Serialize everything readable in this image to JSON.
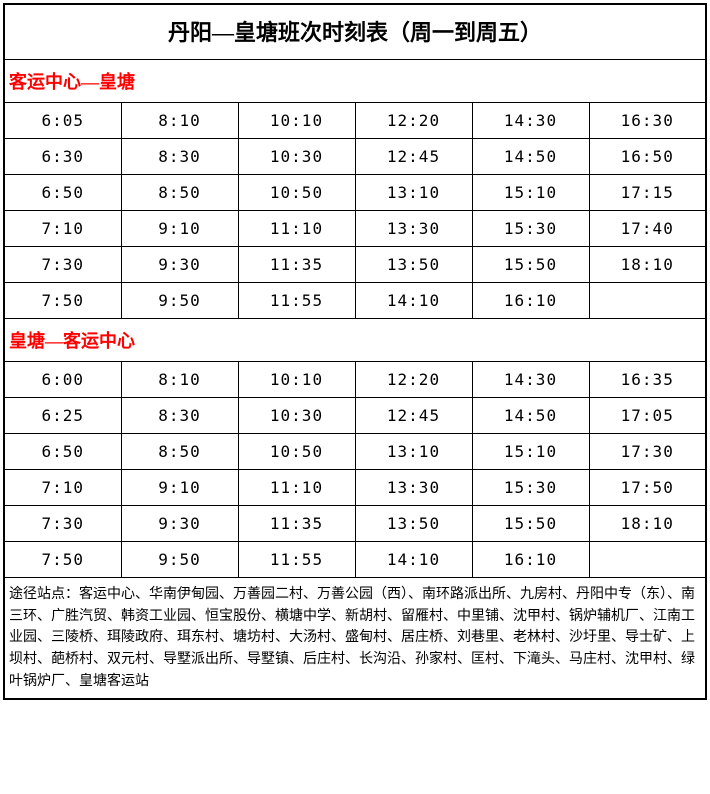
{
  "title": "丹阳—皇塘班次时刻表（周一到周五）",
  "section1": {
    "header": "客运中心—皇塘",
    "rows": [
      [
        "6:05",
        "8:10",
        "10:10",
        "12:20",
        "14:30",
        "16:30"
      ],
      [
        "6:30",
        "8:30",
        "10:30",
        "12:45",
        "14:50",
        "16:50"
      ],
      [
        "6:50",
        "8:50",
        "10:50",
        "13:10",
        "15:10",
        "17:15"
      ],
      [
        "7:10",
        "9:10",
        "11:10",
        "13:30",
        "15:30",
        "17:40"
      ],
      [
        "7:30",
        "9:30",
        "11:35",
        "13:50",
        "15:50",
        "18:10"
      ],
      [
        "7:50",
        "9:50",
        "11:55",
        "14:10",
        "16:10",
        ""
      ]
    ]
  },
  "section2": {
    "header": "皇塘—客运中心",
    "rows": [
      [
        "6:00",
        "8:10",
        "10:10",
        "12:20",
        "14:30",
        "16:35"
      ],
      [
        "6:25",
        "8:30",
        "10:30",
        "12:45",
        "14:50",
        "17:05"
      ],
      [
        "6:50",
        "8:50",
        "10:50",
        "13:10",
        "15:10",
        "17:30"
      ],
      [
        "7:10",
        "9:10",
        "11:10",
        "13:30",
        "15:30",
        "17:50"
      ],
      [
        "7:30",
        "9:30",
        "11:35",
        "13:50",
        "15:50",
        "18:10"
      ],
      [
        "7:50",
        "9:50",
        "11:55",
        "14:10",
        "16:10",
        ""
      ]
    ]
  },
  "footer": "途径站点：客运中心、华南伊甸园、万善园二村、万善公园（西）、南环路派出所、九房村、丹阳中专（东）、南三环、广胜汽贸、韩资工业园、恒宝股份、横塘中学、新胡村、留雁村、中里铺、沈甲村、锅炉辅机厂、江南工业园、三陵桥、珥陵政府、珥东村、塘坊村、大汤村、盛甸村、居庄桥、刘巷里、老林村、沙圩里、导士矿、上坝村、葩桥村、双元村、导墅派出所、导墅镇、后庄村、长沟沿、孙家村、匡村、下滝头、马庄村、沈甲村、绿叶锅炉厂、皇塘客运站",
  "colors": {
    "header_text": "#ff0000",
    "border": "#000000",
    "background": "#ffffff"
  }
}
